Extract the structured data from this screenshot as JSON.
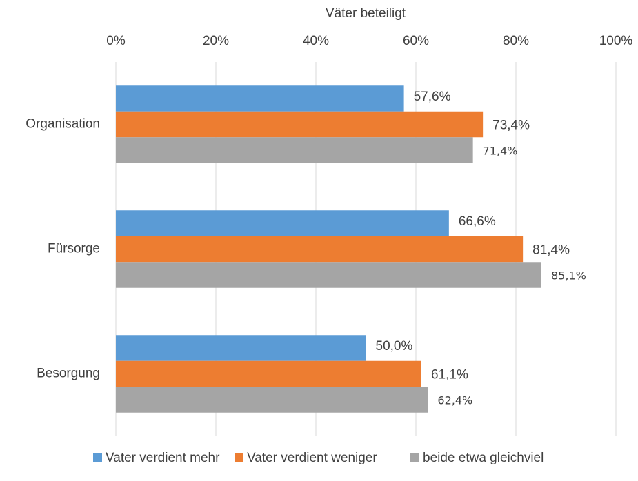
{
  "chart_data": {
    "type": "bar",
    "orientation": "horizontal",
    "x_label": "Väter beteiligt",
    "categories": [
      "Organisation",
      "Fürsorge",
      "Besorgung"
    ],
    "series": [
      {
        "name": "Vater verdient mehr",
        "color": "#5b9bd5",
        "values": [
          57.6,
          66.6,
          50.0
        ],
        "value_labels": [
          "57,6%",
          "66,6%",
          "50,0%"
        ]
      },
      {
        "name": "Vater verdient weniger",
        "color": "#ed7d31",
        "values": [
          73.4,
          81.4,
          61.1
        ],
        "value_labels": [
          "73,4%",
          "81,4%",
          "61,1%"
        ]
      },
      {
        "name": "beide etwa gleichviel",
        "color": "#a5a5a5",
        "values": [
          71.4,
          85.1,
          62.4
        ],
        "value_labels": [
          "71,4%",
          "85,1%",
          "62,4%"
        ]
      }
    ],
    "xlim": [
      0,
      100
    ],
    "xticks": [
      {
        "value": 0,
        "label": "0%"
      },
      {
        "value": 20,
        "label": "20%"
      },
      {
        "value": 40,
        "label": "40%"
      },
      {
        "value": 60,
        "label": "60%"
      },
      {
        "value": 80,
        "label": "80%"
      },
      {
        "value": 100,
        "label": "100%"
      }
    ],
    "grid": true,
    "legend": "bottom"
  }
}
